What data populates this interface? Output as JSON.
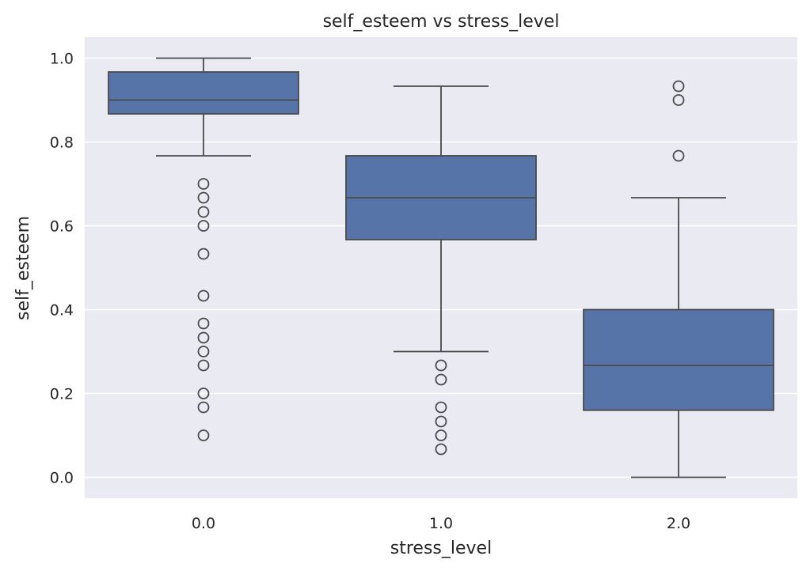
{
  "chart_data": {
    "type": "box",
    "title": "self_esteem vs stress_level",
    "xlabel": "stress_level",
    "ylabel": "self_esteem",
    "categories": [
      "0.0",
      "1.0",
      "2.0"
    ],
    "ylim": [
      -0.05,
      1.05
    ],
    "yticks": [
      0.0,
      0.2,
      0.4,
      0.6,
      0.8,
      1.0
    ],
    "ytick_labels": [
      "0.0",
      "0.2",
      "0.4",
      "0.6",
      "0.8",
      "1.0"
    ],
    "grid": true,
    "colors": {
      "background": "#eaeaf2",
      "grid": "#ffffff",
      "box_fill": "#5674a8",
      "line": "#4a4a4a"
    },
    "boxes": [
      {
        "category": "0.0",
        "whisker_low": 0.767,
        "q1": 0.867,
        "median": 0.9,
        "q3": 0.967,
        "whisker_high": 1.0,
        "outliers": [
          0.7,
          0.667,
          0.633,
          0.6,
          0.533,
          0.433,
          0.367,
          0.333,
          0.3,
          0.267,
          0.2,
          0.167,
          0.1
        ]
      },
      {
        "category": "1.0",
        "whisker_low": 0.3,
        "q1": 0.567,
        "median": 0.667,
        "q3": 0.767,
        "whisker_high": 0.933,
        "outliers": [
          0.267,
          0.233,
          0.167,
          0.133,
          0.1,
          0.067
        ]
      },
      {
        "category": "2.0",
        "whisker_low": 0.0,
        "q1": 0.16,
        "median": 0.267,
        "q3": 0.4,
        "whisker_high": 0.667,
        "outliers": [
          0.933,
          0.9,
          0.767
        ]
      }
    ]
  }
}
